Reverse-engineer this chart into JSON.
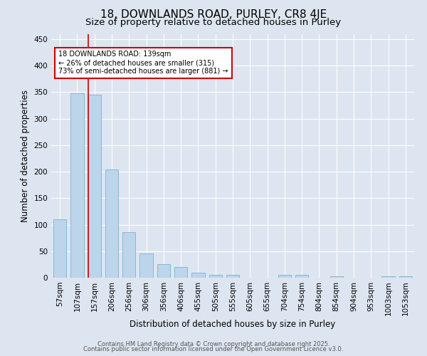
{
  "title_line1": "18, DOWNLANDS ROAD, PURLEY, CR8 4JE",
  "title_line2": "Size of property relative to detached houses in Purley",
  "xlabel": "Distribution of detached houses by size in Purley",
  "ylabel": "Number of detached properties",
  "categories": [
    "57sqm",
    "107sqm",
    "157sqm",
    "206sqm",
    "256sqm",
    "306sqm",
    "356sqm",
    "406sqm",
    "455sqm",
    "505sqm",
    "555sqm",
    "605sqm",
    "655sqm",
    "704sqm",
    "754sqm",
    "804sqm",
    "854sqm",
    "904sqm",
    "953sqm",
    "1003sqm",
    "1053sqm"
  ],
  "values": [
    110,
    348,
    345,
    204,
    86,
    46,
    25,
    20,
    10,
    5,
    5,
    0,
    0,
    6,
    6,
    0,
    3,
    0,
    0,
    3,
    3
  ],
  "bar_color": "#bdd5ea",
  "bar_edge_color": "#7eb0d4",
  "annotation_text": "18 DOWNLANDS ROAD: 139sqm\n← 26% of detached houses are smaller (315)\n73% of semi-detached houses are larger (881) →",
  "annotation_box_facecolor": "#ffffff",
  "annotation_box_edgecolor": "#cc0000",
  "ylim": [
    0,
    460
  ],
  "yticks": [
    0,
    50,
    100,
    150,
    200,
    250,
    300,
    350,
    400,
    450
  ],
  "background_color": "#dde5f0",
  "grid_color": "#ffffff",
  "red_line_color": "#cc0000",
  "footer_line1": "Contains HM Land Registry data © Crown copyright and database right 2025.",
  "footer_line2": "Contains public sector information licensed under the Open Government Licence v3.0.",
  "title_fontsize": 11,
  "subtitle_fontsize": 9.5,
  "tick_fontsize": 7.5,
  "ylabel_fontsize": 8.5,
  "xlabel_fontsize": 8.5,
  "annotation_fontsize": 7,
  "footer_fontsize": 6
}
